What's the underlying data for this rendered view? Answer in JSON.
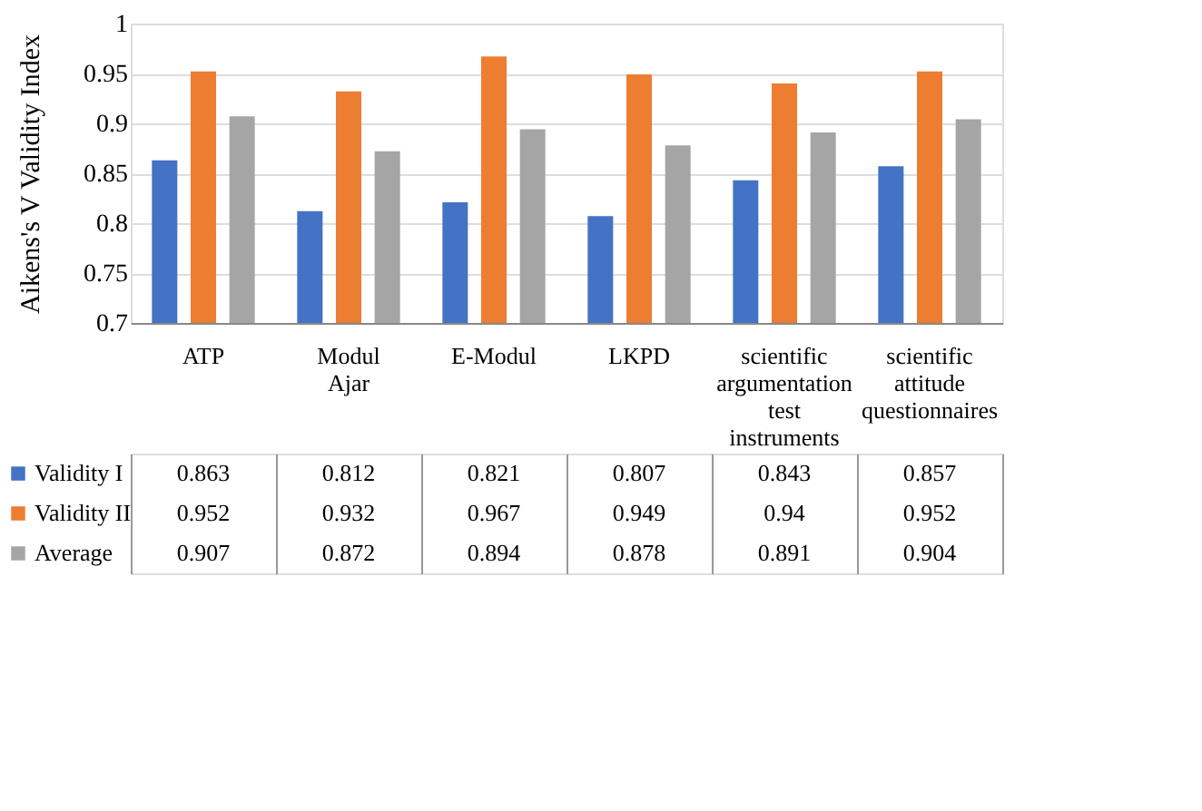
{
  "chart_data": {
    "type": "bar",
    "ylabel": "Aikens's V Validity Index",
    "categories": [
      "ATP",
      "Modul Ajar",
      "E-Modul",
      "LKPD",
      "scientific argumentation test instruments",
      "scientific attitude questionnaires"
    ],
    "series": [
      {
        "name": "Validity I",
        "color": "#4472c4",
        "values": [
          0.863,
          0.812,
          0.821,
          0.807,
          0.843,
          0.857
        ]
      },
      {
        "name": "Validity II",
        "color": "#ed7d31",
        "values": [
          0.952,
          0.932,
          0.967,
          0.949,
          0.94,
          0.952
        ]
      },
      {
        "name": "Average",
        "color": "#a5a5a5",
        "values": [
          0.907,
          0.872,
          0.894,
          0.878,
          0.891,
          0.904
        ]
      }
    ],
    "ylim": [
      0.7,
      1
    ],
    "yticks": [
      0.7,
      0.75,
      0.8,
      0.85,
      0.9,
      0.95,
      1
    ],
    "grid": "y",
    "legend": "bottom left",
    "data_labels": true
  }
}
